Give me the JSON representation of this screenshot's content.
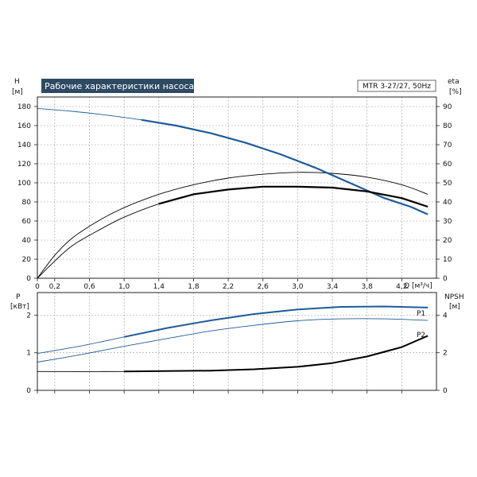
{
  "chart_data": [
    {
      "type": "line",
      "title": "Рабочие характеристики насоса",
      "model_label": "MTR 3-27/27, 50Hz",
      "xlabel": "Q [м³/ч]",
      "ylabel": [
        "H",
        "[м]"
      ],
      "ylabel_right": [
        "eta",
        "[%]"
      ],
      "xlim": [
        0,
        4.6
      ],
      "ylim": [
        0,
        190
      ],
      "ylim_right": [
        0,
        95
      ],
      "x_ticks": [
        "0",
        "0,2",
        "0,6",
        "1,0",
        "1,4",
        "1,8",
        "2,2",
        "2,6",
        "3,0",
        "3,4",
        "3,8",
        "4,2"
      ],
      "x_tick_values": [
        0,
        0.2,
        0.6,
        1.0,
        1.4,
        1.8,
        2.2,
        2.6,
        3.0,
        3.4,
        3.8,
        4.2
      ],
      "y_ticks": [
        0,
        20,
        40,
        60,
        80,
        100,
        120,
        140,
        160,
        180
      ],
      "y_ticks_right": [
        0,
        10,
        20,
        30,
        40,
        50,
        60,
        70,
        80,
        90
      ],
      "grid": true,
      "series": [
        {
          "axis": "left",
          "color": "#1f5b9a",
          "x": [
            0,
            0.4,
            0.8,
            1.2,
            1.6,
            2.0,
            2.4,
            2.8,
            3.2,
            3.6,
            4.0,
            4.3,
            4.5
          ],
          "y": [
            178,
            175,
            171,
            166,
            160,
            152,
            142,
            130,
            116,
            100,
            84,
            75,
            67
          ]
        },
        {
          "axis": "right",
          "color": "#000000",
          "x": [
            0,
            0.2,
            0.4,
            0.7,
            1.0,
            1.4,
            1.8,
            2.2,
            2.6,
            3.0,
            3.4,
            3.8,
            4.2,
            4.5
          ],
          "y": [
            0,
            12,
            21,
            30,
            37,
            44,
            49,
            52.5,
            54.5,
            55.5,
            55,
            53,
            49,
            44
          ]
        },
        {
          "axis": "right",
          "color": "#000000",
          "x": [
            0,
            0.2,
            0.4,
            0.7,
            1.0,
            1.4,
            1.8,
            2.2,
            2.6,
            3.0,
            3.4,
            3.8,
            4.2,
            4.5
          ],
          "y": [
            0,
            9,
            17,
            25,
            32,
            39,
            44,
            46.5,
            48,
            48,
            47.5,
            45.5,
            42,
            37.5
          ]
        }
      ]
    },
    {
      "type": "line",
      "xlabel": "",
      "ylabel": [
        "P",
        "[кВт]"
      ],
      "ylabel_right": [
        "NPSH",
        "[м]"
      ],
      "xlim": [
        0,
        4.6
      ],
      "ylim": [
        0,
        2.6
      ],
      "ylim_right": [
        0,
        5.2
      ],
      "y_ticks": [
        0,
        1,
        2
      ],
      "y_ticks_right": [
        0,
        2,
        4
      ],
      "grid": true,
      "series": [
        {
          "name": "P1",
          "axis": "left",
          "color": "#1f5b9a",
          "x": [
            0,
            0.5,
            1.0,
            1.5,
            2.0,
            2.5,
            3.0,
            3.5,
            4.0,
            4.5
          ],
          "y": [
            0.98,
            1.18,
            1.42,
            1.66,
            1.86,
            2.03,
            2.15,
            2.22,
            2.23,
            2.2
          ]
        },
        {
          "name": "P2",
          "axis": "left",
          "color": "#1f5b9a",
          "x": [
            0,
            0.5,
            1.0,
            1.5,
            2.0,
            2.5,
            3.0,
            3.5,
            4.0,
            4.5
          ],
          "y": [
            0.75,
            0.95,
            1.17,
            1.38,
            1.58,
            1.73,
            1.85,
            1.9,
            1.9,
            1.86
          ]
        },
        {
          "axis": "right",
          "color": "#000000",
          "x": [
            0,
            1.0,
            2.0,
            2.5,
            3.0,
            3.4,
            3.8,
            4.2,
            4.5
          ],
          "y": [
            1.0,
            1.0,
            1.05,
            1.12,
            1.25,
            1.45,
            1.8,
            2.3,
            2.9
          ]
        }
      ]
    }
  ]
}
